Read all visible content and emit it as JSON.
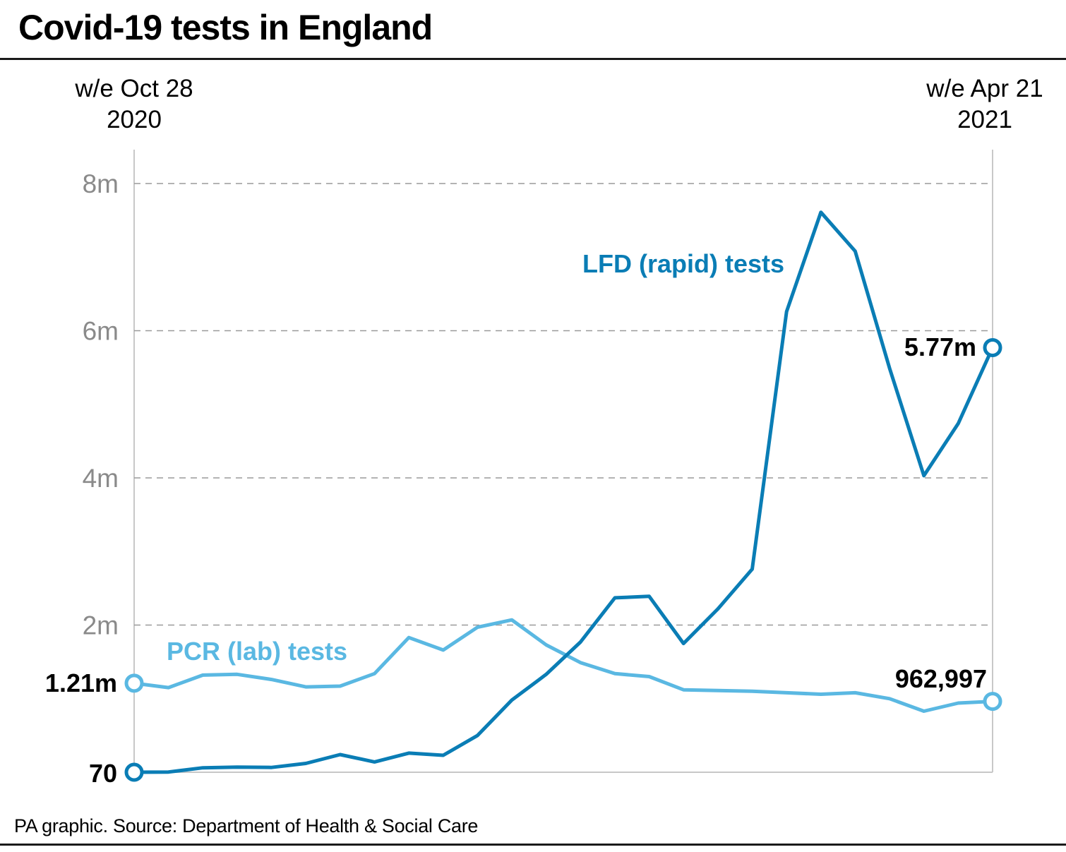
{
  "title": "Covid-19 tests in England",
  "source": "PA graphic. Source: Department of Health & Social Care",
  "chart_data": {
    "type": "line",
    "title": "Covid-19 tests in England",
    "x_start": {
      "line1": "w/e Oct 28",
      "line2": "2020"
    },
    "x_end": {
      "line1": "w/e Apr 21",
      "line2": "2021"
    },
    "y_ticks": [
      {
        "value": 2000000,
        "label": "2m"
      },
      {
        "value": 4000000,
        "label": "4m"
      },
      {
        "value": 6000000,
        "label": "6m"
      },
      {
        "value": 8000000,
        "label": "8m"
      }
    ],
    "ylim": [
      0,
      8000000
    ],
    "grid": "dashed horizontal",
    "series": [
      {
        "name": "LFD (rapid) tests",
        "color": "#0a7db5",
        "values": [
          70,
          3000,
          60000,
          70000,
          65000,
          120000,
          240000,
          140000,
          260000,
          230000,
          500000,
          980000,
          1330000,
          1770000,
          2370000,
          2390000,
          1750000,
          2220000,
          2760000,
          6260000,
          7610000,
          7080000,
          5490000,
          4030000,
          4740000,
          5770000
        ],
        "start_label": "70",
        "end_label": "5.77m"
      },
      {
        "name": "PCR (lab) tests",
        "color": "#5ab8e2",
        "values": [
          1210000,
          1150000,
          1320000,
          1330000,
          1260000,
          1160000,
          1170000,
          1340000,
          1830000,
          1660000,
          1970000,
          2070000,
          1730000,
          1490000,
          1340000,
          1300000,
          1120000,
          1110000,
          1100000,
          1080000,
          1060000,
          1080000,
          1000000,
          830000,
          940000,
          962997
        ],
        "start_label": "1.21m",
        "end_label": "962,997"
      }
    ]
  }
}
